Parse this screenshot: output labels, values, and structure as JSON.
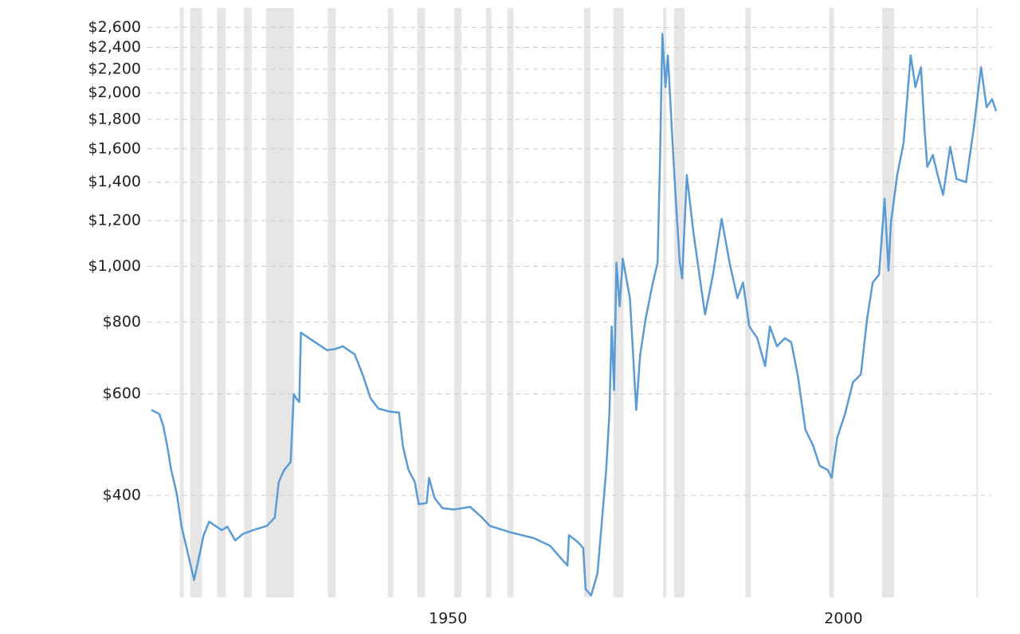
{
  "chart_data": {
    "type": "line",
    "log_scale": true,
    "grid": true,
    "xlim": [
      1912.5,
      2019.3
    ],
    "xticks": [
      1950,
      2000
    ],
    "ylim": [
      266,
      2810
    ],
    "yticks": [
      {
        "value": 400,
        "label": "$400"
      },
      {
        "value": 600,
        "label": "$600"
      },
      {
        "value": 800,
        "label": "$800"
      },
      {
        "value": 1000,
        "label": "$1,000"
      },
      {
        "value": 1200,
        "label": "$1,200"
      },
      {
        "value": 1400,
        "label": "$1,400"
      },
      {
        "value": 1600,
        "label": "$1,600"
      },
      {
        "value": 1800,
        "label": "$1,800"
      },
      {
        "value": 2000,
        "label": "$2,000"
      },
      {
        "value": 2200,
        "label": "$2,200"
      },
      {
        "value": 2400,
        "label": "$2,400"
      },
      {
        "value": 2600,
        "label": "$2,600"
      }
    ],
    "recession_color": "#e6e6e6",
    "recessions": [
      [
        1916.1,
        1916.6
      ],
      [
        1917.4,
        1918.9
      ],
      [
        1920.8,
        1921.9
      ],
      [
        1924.2,
        1925.2
      ],
      [
        1927.0,
        1930.5
      ],
      [
        1934.8,
        1935.8
      ],
      [
        1942.4,
        1943.1
      ],
      [
        1946.1,
        1947.1
      ],
      [
        1950.8,
        1951.7
      ],
      [
        1954.8,
        1955.5
      ],
      [
        1957.5,
        1958.3
      ],
      [
        1967.2,
        1968.0
      ],
      [
        1970.9,
        1972.2
      ],
      [
        1977.2,
        1977.6
      ],
      [
        1978.6,
        1979.9
      ],
      [
        1987.6,
        1988.3
      ],
      [
        1998.2,
        1998.8
      ],
      [
        2004.9,
        2006.4
      ],
      [
        2016.8,
        2017.0
      ]
    ],
    "x": [
      1912.5,
      1913.5,
      1914.0,
      1914.5,
      1915.0,
      1915.7,
      1916.3,
      1917.0,
      1917.9,
      1918.5,
      1919.1,
      1919.8,
      1920.6,
      1921.4,
      1922.1,
      1923.1,
      1924.1,
      1925.6,
      1927.1,
      1928.1,
      1928.6,
      1929.3,
      1930.1,
      1930.5,
      1930.8,
      1931.2,
      1931.4,
      1933.2,
      1934.7,
      1935.7,
      1936.7,
      1938.2,
      1939.2,
      1940.2,
      1941.2,
      1942.7,
      1943.8,
      1944.3,
      1945.0,
      1945.8,
      1946.3,
      1947.3,
      1947.6,
      1948.3,
      1949.3,
      1950.8,
      1952.8,
      1954.3,
      1955.3,
      1957.9,
      1960.9,
      1962.9,
      1965.1,
      1965.3,
      1966.4,
      1967.1,
      1967.4,
      1968.1,
      1968.9,
      1969.5,
      1970.0,
      1970.4,
      1970.7,
      1971.0,
      1971.3,
      1971.7,
      1972.1,
      1973.0,
      1973.8,
      1974.3,
      1975.0,
      1975.8,
      1976.5,
      1976.8,
      1977.1,
      1977.5,
      1977.8,
      1978.5,
      1978.8,
      1979.3,
      1979.6,
      1980.2,
      1981.0,
      1982.0,
      1982.5,
      1983.5,
      1984.6,
      1985.6,
      1986.6,
      1987.3,
      1988.1,
      1989.1,
      1990.1,
      1990.7,
      1991.6,
      1992.6,
      1993.4,
      1994.2,
      1995.2,
      1996.2,
      1997.0,
      1998.0,
      1998.5,
      1999.2,
      2000.2,
      2001.2,
      2002.2,
      2003.0,
      2003.7,
      2004.5,
      2005.2,
      2005.7,
      2006.0,
      2006.8,
      2007.6,
      2008.5,
      2009.1,
      2009.8,
      2010.3,
      2010.6,
      2011.3,
      2011.9,
      2012.6,
      2013.5,
      2014.3,
      2015.5,
      2016.5,
      2017.4,
      2018.1,
      2018.8,
      2019.3
    ],
    "series": [
      {
        "color": "#5b9bd5",
        "values": [
          563,
          554,
          528,
          487,
          443,
          403,
          354,
          322,
          285,
          312,
          341,
          360,
          354,
          348,
          353,
          334,
          343,
          349,
          354,
          366,
          422,
          443,
          457,
          600,
          590,
          581,
          767,
          738,
          715,
          718,
          726,
          703,
          649,
          590,
          566,
          559,
          557,
          487,
          443,
          422,
          386,
          388,
          429,
          396,
          380,
          378,
          382,
          366,
          354,
          345,
          337,
          327,
          302,
          341,
          332,
          324,
          275,
          268,
          293,
          366,
          443,
          554,
          786,
          609,
          1015,
          852,
          1031,
          879,
          563,
          703,
          812,
          922,
          1015,
          1512,
          2534,
          2047,
          2325,
          1536,
          1310,
          1015,
          952,
          1441,
          1153,
          920,
          825,
          967,
          1209,
          1015,
          880,
          937,
          786,
          750,
          671,
          786,
          726,
          750,
          738,
          649,
          520,
          487,
          450,
          443,
          429,
          503,
          554,
          629,
          649,
          812,
          937,
          967,
          1310,
          983,
          1190,
          1441,
          1637,
          2325,
          2047,
          2217,
          1690,
          1488,
          1561,
          1441,
          1331,
          1612,
          1418,
          1400,
          1745,
          2217,
          1890,
          1951,
          1860
        ]
      }
    ]
  }
}
